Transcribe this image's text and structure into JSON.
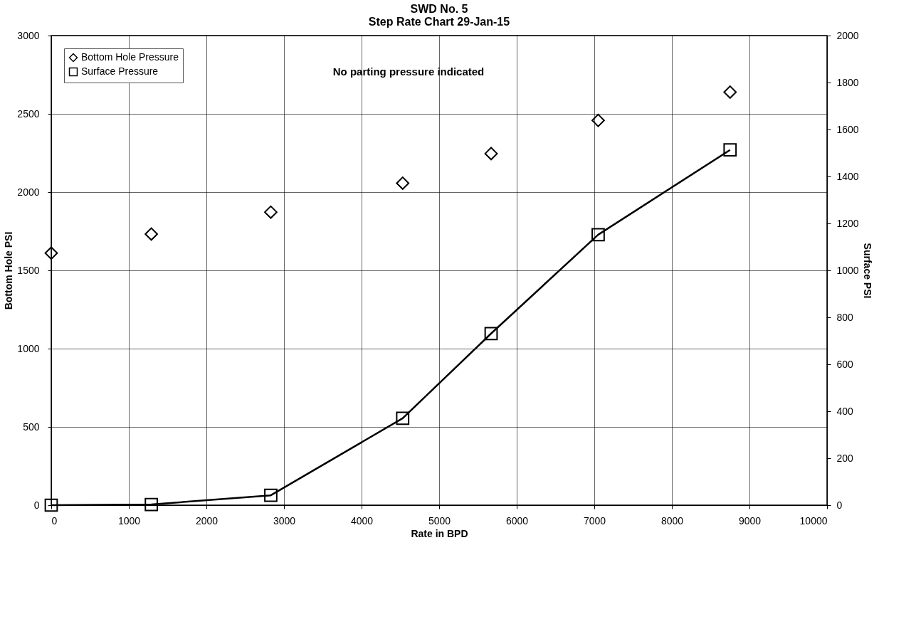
{
  "chart_data": {
    "type": "scatter",
    "title": [
      "SWD No. 5",
      "Step Rate Chart 29-Jan-15"
    ],
    "xlabel": "Rate in BPD",
    "ylabel": "Bottom Hole PSI",
    "y2label": "Surface PSI",
    "annotations": [
      "No parting pressure indicated"
    ],
    "x": [
      0,
      1290,
      2830,
      4530,
      5670,
      7050,
      8750
    ],
    "series": [
      {
        "name": "Bottom Hole Pressure",
        "marker": "diamond",
        "color": "#000000",
        "values": [
          1610,
          1732,
          1872,
          2057,
          2246,
          2458,
          2639
        ]
      },
      {
        "name": "Surface Pressure",
        "type": "line",
        "axis": "y2",
        "marker": "square",
        "color": "#000000",
        "values": [
          0,
          3,
          42,
          370,
          731,
          1152,
          1513
        ]
      }
    ],
    "xlim": [
      0,
      10000
    ],
    "xticks": [
      0,
      1000,
      2000,
      3000,
      4000,
      5000,
      6000,
      7000,
      8000,
      9000,
      10000
    ],
    "ylim": [
      0,
      3000
    ],
    "yticks": [
      0,
      500,
      1000,
      1500,
      2000,
      2500,
      3000
    ],
    "y2lim": [
      0,
      2000
    ],
    "y2ticks": [
      0,
      200,
      400,
      600,
      800,
      1000,
      1200,
      1400,
      1600,
      1800,
      2000
    ],
    "grid": true,
    "legend": "top left"
  }
}
